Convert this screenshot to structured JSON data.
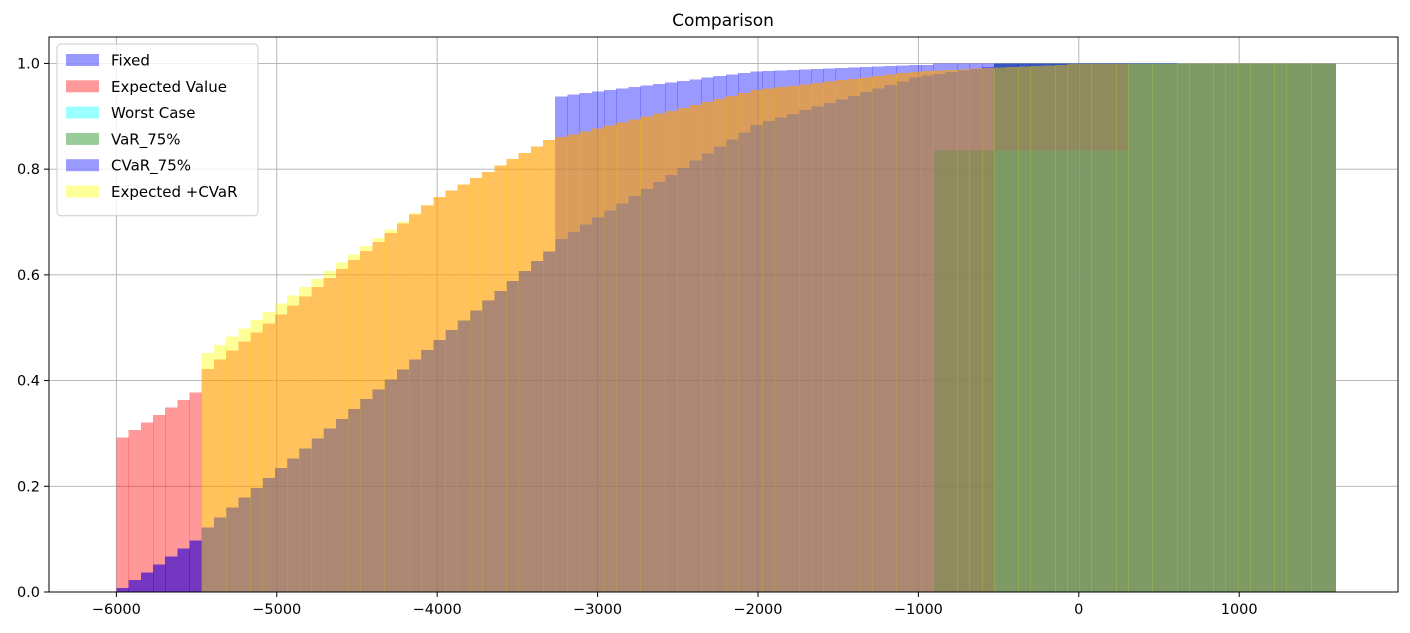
{
  "chart_data": {
    "type": "histogram_cumulative",
    "title": "Comparison",
    "xlabel": "",
    "ylabel": "",
    "xlim": [
      -6420,
      1990
    ],
    "ylim": [
      0,
      1.05
    ],
    "xticks": [
      -6000,
      -5000,
      -4000,
      -3000,
      -2000,
      -1000,
      0,
      1000
    ],
    "xtick_labels": [
      "−6000",
      "−5000",
      "−4000",
      "−3000",
      "−2000",
      "−1000",
      "0",
      "1000"
    ],
    "yticks": [
      0.0,
      0.2,
      0.4,
      0.6,
      0.8,
      1.0
    ],
    "ytick_labels": [
      "0.0",
      "0.2",
      "0.4",
      "0.6",
      "0.8",
      "1.0"
    ],
    "grid": true,
    "legend_position": "top-left",
    "bin_range": [
      -6000,
      1600
    ],
    "bins": 100,
    "alpha": 0.4,
    "series": [
      {
        "name": "Fixed",
        "color": "#0000ff",
        "knots": [
          [
            -6000,
            0.0
          ],
          [
            -5440,
            0.11
          ],
          [
            -5440,
            0.12
          ],
          [
            -3300,
            0.645
          ],
          [
            -3300,
            0.935
          ],
          [
            -2000,
            0.985
          ],
          [
            -900,
            0.998
          ],
          [
            -900,
            1.0
          ],
          [
            1600,
            1.0
          ]
        ]
      },
      {
        "name": "Expected Value",
        "color": "#ff0000",
        "knots": [
          [
            -6000,
            0.285
          ],
          [
            -5440,
            0.39
          ],
          [
            -5440,
            0.42
          ],
          [
            -4000,
            0.745
          ],
          [
            -3300,
            0.855
          ],
          [
            -2000,
            0.95
          ],
          [
            -1000,
            0.985
          ],
          [
            0,
            0.999
          ],
          [
            1600,
            1.0
          ]
        ]
      },
      {
        "name": "Worst Case",
        "color": "#00ffff",
        "knots": [
          [
            -520,
            0.835
          ],
          [
            -520,
            0.835
          ],
          [
            340,
            0.835
          ],
          [
            340,
            1.0
          ],
          [
            1600,
            1.0
          ]
        ]
      },
      {
        "name": "VaR_75%",
        "color": "#008000",
        "knots": [
          [
            -900,
            0.835
          ],
          [
            -900,
            0.835
          ],
          [
            -520,
            0.835
          ],
          [
            -520,
            1.0
          ],
          [
            1600,
            1.0
          ]
        ]
      },
      {
        "name": "CVaR_75%",
        "color": "#0000ff",
        "knots": [
          [
            -6000,
            0.0
          ],
          [
            -5440,
            0.11
          ],
          [
            -5440,
            0.12
          ],
          [
            -3300,
            0.645
          ],
          [
            -3300,
            0.655
          ],
          [
            -2000,
            0.885
          ],
          [
            -1000,
            0.975
          ],
          [
            -520,
            0.995
          ],
          [
            -520,
            1.0
          ],
          [
            1600,
            1.0
          ]
        ]
      },
      {
        "name": "Expected +CVaR",
        "color": "#ffff00",
        "knots": [
          [
            -5440,
            0.45
          ],
          [
            -5440,
            0.45
          ],
          [
            -4000,
            0.745
          ],
          [
            -3300,
            0.855
          ],
          [
            -2000,
            0.95
          ],
          [
            -1000,
            0.985
          ],
          [
            0,
            0.999
          ],
          [
            1600,
            1.0
          ]
        ]
      }
    ]
  }
}
